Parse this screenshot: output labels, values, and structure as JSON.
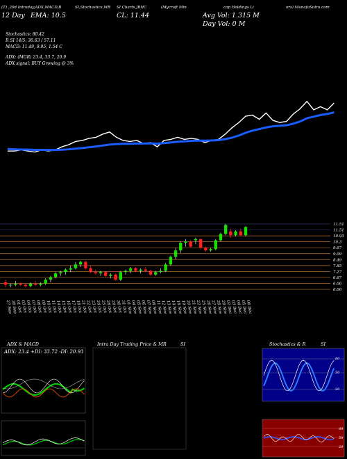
{
  "header": {
    "line1": [
      "(T) ,20d Intraday,ADX,MACD,B",
      "SI,Stochastics,MR",
      "SI Charts JBHC",
      "(Mycroft Min",
      "cap Holdings Li",
      "ors) MunafaSutra.com"
    ],
    "line2_left": "EMA: 10.5",
    "line2_mid": "CL: 11.44",
    "avg_vol": "Avg Vol: 1.315  M",
    "day_vol": "Day Vol: 0   M",
    "line2_prefix": "12 Day",
    "stoch": "Stochastics: 80.42",
    "rsi": "R          SI 14/5: 36.63 / 57.11",
    "macd": "MACD: 11.49, 9.95, 1.54   C",
    "adx": "ADX:                              (MGR) 23.4, 33.7, 20.9",
    "adx_signal": "ADX  signal:                                  BUY Growing @ 3%"
  },
  "chart_data": {
    "type": "candlestick",
    "price_ticks": [
      "11.51",
      "11.51",
      "10.93",
      "10.3",
      "9.67",
      "9.09",
      "8.49",
      "7.85",
      "7.27",
      "6.67",
      "6.06",
      "6.06"
    ],
    "dates": [
      "27 Sep",
      "30 Sep",
      "01 Oct",
      "03 Oct",
      "04 Oct",
      "07 Oct",
      "08 Oct",
      "09 Oct",
      "10 Oct",
      "11 Oct",
      "14 Oct",
      "15 Oct",
      "16 Oct",
      "17 Oct",
      "18 Oct",
      "21 Oct",
      "22 Oct",
      "23 Oct",
      "24 Oct",
      "25 Oct",
      "28 Oct",
      "29 Oct",
      "30 Oct",
      "31 Oct",
      "01 Nov",
      "04 Nov",
      "05 Nov",
      "06 Nov",
      "07 Nov",
      "08 Nov",
      "11 Nov",
      "12 Nov",
      "13 Nov",
      "14 Nov",
      "18 Nov",
      "19 Nov",
      "20 Nov",
      "21 Nov",
      "22 Nov",
      "25 Nov",
      "26 Nov",
      "27 Nov",
      "28 Nov",
      "29 Nov",
      "02 Dec",
      "03 Dec",
      "04 Dec",
      "05 Dec",
      "06 Dec"
    ],
    "ohlc": [
      [
        7.1,
        7.3,
        6.7,
        6.9
      ],
      [
        6.9,
        7.0,
        6.7,
        6.9
      ],
      [
        6.9,
        7.2,
        6.8,
        7.0
      ],
      [
        7.0,
        7.1,
        6.8,
        6.9
      ],
      [
        6.9,
        7.0,
        6.7,
        6.8
      ],
      [
        6.8,
        7.1,
        6.7,
        7.0
      ],
      [
        7.0,
        7.2,
        6.8,
        6.9
      ],
      [
        6.9,
        7.1,
        6.8,
        7.0
      ],
      [
        7.0,
        7.4,
        6.9,
        7.3
      ],
      [
        7.3,
        7.6,
        7.1,
        7.5
      ],
      [
        7.5,
        7.9,
        7.4,
        7.8
      ],
      [
        7.8,
        8.0,
        7.6,
        7.9
      ],
      [
        7.9,
        8.2,
        7.7,
        8.1
      ],
      [
        8.1,
        8.4,
        7.9,
        8.2
      ],
      [
        8.2,
        8.7,
        8.1,
        8.5
      ],
      [
        8.5,
        8.8,
        8.3,
        8.7
      ],
      [
        8.7,
        8.8,
        8.1,
        8.2
      ],
      [
        8.2,
        8.4,
        7.8,
        7.9
      ],
      [
        7.9,
        8.1,
        7.7,
        7.8
      ],
      [
        7.8,
        8.0,
        7.6,
        7.9
      ],
      [
        7.9,
        8.0,
        7.5,
        7.6
      ],
      [
        7.6,
        7.8,
        7.4,
        7.7
      ],
      [
        7.7,
        7.8,
        7.2,
        7.3
      ],
      [
        7.3,
        8.0,
        7.2,
        7.9
      ],
      [
        7.9,
        8.1,
        7.7,
        8.0
      ],
      [
        8.0,
        8.3,
        7.8,
        8.2
      ],
      [
        8.2,
        8.3,
        7.9,
        8.0
      ],
      [
        8.0,
        8.2,
        7.8,
        8.1
      ],
      [
        8.1,
        8.3,
        7.9,
        8.0
      ],
      [
        8.0,
        8.1,
        7.6,
        7.7
      ],
      [
        7.7,
        8.0,
        7.6,
        7.9
      ],
      [
        7.9,
        8.2,
        7.8,
        8.0
      ],
      [
        8.0,
        8.6,
        7.9,
        8.5
      ],
      [
        8.5,
        9.2,
        8.4,
        9.1
      ],
      [
        9.1,
        9.8,
        8.9,
        9.6
      ],
      [
        9.6,
        10.3,
        9.4,
        10.2
      ],
      [
        10.2,
        10.5,
        9.9,
        10.3
      ],
      [
        10.3,
        10.4,
        9.8,
        9.9
      ],
      [
        10.4,
        10.6,
        10.1,
        10.5
      ],
      [
        10.5,
        10.5,
        9.7,
        9.8
      ],
      [
        9.8,
        9.9,
        9.5,
        9.6
      ],
      [
        9.6,
        9.8,
        9.5,
        9.7
      ],
      [
        9.7,
        10.5,
        9.6,
        10.4
      ],
      [
        10.4,
        11.0,
        10.3,
        10.9
      ],
      [
        10.9,
        11.7,
        10.8,
        11.6
      ],
      [
        11.1,
        11.3,
        10.6,
        10.8
      ],
      [
        10.8,
        11.2,
        10.7,
        11.1
      ],
      [
        11.1,
        11.3,
        10.7,
        10.8
      ],
      [
        10.8,
        11.5,
        10.7,
        11.44
      ]
    ],
    "ema": [
      7.05,
      7.02,
      7.0,
      6.99,
      6.97,
      6.97,
      6.96,
      6.96,
      6.98,
      7.02,
      7.08,
      7.14,
      7.21,
      7.28,
      7.37,
      7.46,
      7.51,
      7.53,
      7.54,
      7.56,
      7.56,
      7.57,
      7.55,
      7.6,
      7.65,
      7.72,
      7.76,
      7.8,
      7.83,
      7.82,
      7.84,
      7.87,
      7.96,
      8.1,
      8.3,
      8.55,
      8.75,
      8.9,
      9.05,
      9.15,
      9.2,
      9.25,
      9.4,
      9.6,
      9.9,
      10.05,
      10.2,
      10.3,
      10.45
    ]
  },
  "panels": {
    "adx_macd_title": "ADX  & MACD",
    "adx_values": "ADX: 23.4  +DI: 33.72  -DI: 20.93",
    "intraday_title": "Intra  Day Trading Price  & MR",
    "intraday_title2": "SI",
    "stoch_title": "Stochastics & R",
    "stoch_title2": "SI",
    "stoch_ticks": [
      "80",
      "50",
      "20"
    ],
    "rsi_ticks": [
      "80",
      "50",
      "20"
    ],
    "rsi_small": [
      "80",
      "50",
      "20"
    ]
  },
  "colors": {
    "bull": "#18e000",
    "bear": "#ff2020",
    "ema": "#1a5cff",
    "grid": "#b8702e",
    "macd_green": "#00cc00",
    "panel_blue": "#000088",
    "panel_red": "#880000"
  }
}
